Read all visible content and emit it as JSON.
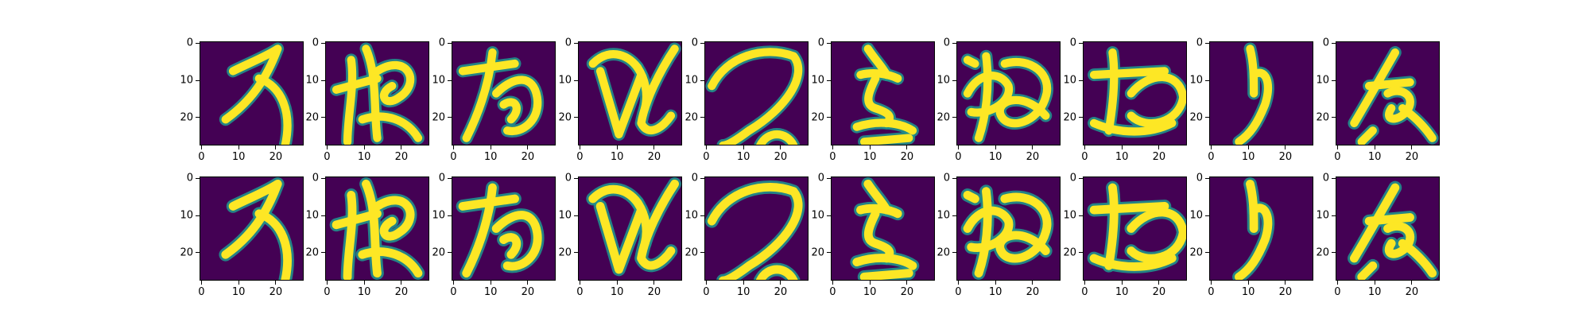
{
  "figure": {
    "colormap": "viridis",
    "image_size": [
      28,
      28
    ],
    "rows": [
      {
        "name": "top-row",
        "count": 10
      },
      {
        "name": "bottom-row",
        "count": 10
      }
    ],
    "x_ticks": [
      "0",
      "10",
      "20"
    ],
    "y_ticks": [
      "0",
      "10",
      "20"
    ],
    "colors": {
      "background": "#440154",
      "mid": "#21918c",
      "bright": "#fde725"
    }
  }
}
